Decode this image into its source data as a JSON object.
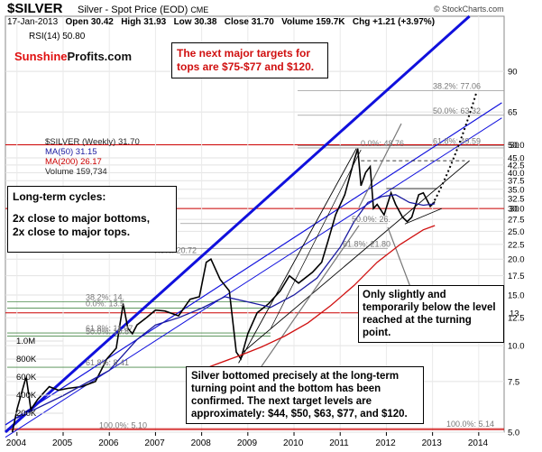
{
  "header": {
    "symbol": "$SILVER",
    "name": "Silver - Spot Price (EOD)",
    "exchange": "CME",
    "date": "17-Jan-2013",
    "open": "Open 30.42",
    "high": "High 31.93",
    "low": "Low 30.38",
    "close": "Close 31.70",
    "volume": "Volume 159.7K",
    "chg": "Chg +1.21 (+3.97%)",
    "copyright": "© StockCharts.com"
  },
  "rsi_label": "RSI(14) 50.80",
  "legend": {
    "series": "$SILVER (Weekly) 31.70",
    "ma50": "MA(50) 31.15",
    "ma200": "MA(200) 26.17",
    "volume": "Volume 159,734"
  },
  "logo": {
    "part1": "Sunshine",
    "part2": "Profits.com"
  },
  "annotations": {
    "targets": "The next major targets for tops are $75-$77 and $120.",
    "cycles_title": "Long-term cycles:",
    "cycles_line1": "2x close to major bottoms,",
    "cycles_line2": "2x close to major tops.",
    "slightly": "Only slightly and temporarily below the level reached at the turning point.",
    "bottomed": "Silver bottomed precisely at the long-term turning point  and the bottom has been confirmed. The next target levels are approximately: $44, $50, $63, $77, and $120."
  },
  "fib_labels": [
    {
      "text": "38.2%: 77.06",
      "price": 77.06
    },
    {
      "text": "50.0%: 63.32",
      "price": 63.32
    },
    {
      "text": "61.8%: 49.59",
      "price": 49.59
    },
    {
      "text": "0.0%: 48.76",
      "price": 48.76
    },
    {
      "text": "50.0%: 26.",
      "price": 26.6
    },
    {
      "text": "61.8%: 21.80",
      "price": 21.8
    },
    {
      "text": "0.0%: 20.72",
      "price": 20.72
    },
    {
      "text": "0.0%: 13.5",
      "price": 13.5
    },
    {
      "text": "38.2%: 14.",
      "price": 14.2
    },
    {
      "text": "61.8%: 11.07",
      "price": 11.07
    },
    {
      "text": "50.0%: 10.8",
      "price": 10.8
    },
    {
      "text": "61.8%: 8.41",
      "price": 8.41
    },
    {
      "text": "100.0%: 5.10",
      "price": 5.1
    },
    {
      "text": "100.0%: 5.14",
      "price": 5.14
    }
  ],
  "volume_labels": [
    "1.0M",
    "800K",
    "600K",
    "400K",
    "200K"
  ],
  "colors": {
    "price": "#000000",
    "ma50": "#1a1aa0",
    "ma200": "#d01010",
    "blue_trend": "#0000dd",
    "fib_red": "#cc0000",
    "fib_green": "#008000",
    "logo_red": "#e01010"
  },
  "chart_data": {
    "type": "line",
    "title": "$SILVER Silver - Spot Price (EOD) CME",
    "y_scale": "log",
    "ylim": [
      5,
      140
    ],
    "xlim": [
      2003.75,
      2014.55
    ],
    "x_ticks": [
      2004,
      2005,
      2006,
      2007,
      2008,
      2009,
      2010,
      2011,
      2012,
      2013,
      2014
    ],
    "y_ticks": [
      5.0,
      7.5,
      10.0,
      12.5,
      15.0,
      17.5,
      20.0,
      22.5,
      25.0,
      27.5,
      30.0,
      32.5,
      35.0,
      37.5,
      40.0,
      42.5,
      45.0,
      50.0,
      65,
      90
    ],
    "y_ticks_red": [
      13,
      30,
      50
    ],
    "series": [
      {
        "name": "$SILVER (Weekly)",
        "x": [
          2003.9,
          2004.0,
          2004.2,
          2004.3,
          2004.45,
          2004.7,
          2004.9,
          2005.1,
          2005.4,
          2005.7,
          2005.95,
          2006.15,
          2006.3,
          2006.4,
          2006.5,
          2006.6,
          2006.8,
          2007.0,
          2007.2,
          2007.5,
          2007.75,
          2007.95,
          2008.1,
          2008.2,
          2008.4,
          2008.6,
          2008.75,
          2008.85,
          2009.0,
          2009.2,
          2009.45,
          2009.7,
          2009.9,
          2010.1,
          2010.4,
          2010.6,
          2010.75,
          2010.9,
          2011.1,
          2011.3,
          2011.38,
          2011.45,
          2011.55,
          2011.65,
          2011.72,
          2011.8,
          2011.95,
          2012.1,
          2012.2,
          2012.35,
          2012.45,
          2012.55,
          2012.7,
          2012.8,
          2012.95,
          2013.05
        ],
        "values": [
          5.0,
          6.0,
          7.8,
          6.0,
          6.5,
          7.2,
          7.0,
          7.1,
          7.2,
          7.5,
          9.0,
          9.8,
          14.0,
          11.5,
          11.0,
          11.8,
          12.5,
          13.3,
          13.2,
          12.7,
          14.5,
          14.8,
          19.5,
          20.0,
          17.0,
          15.5,
          9.5,
          9.0,
          11.0,
          13.0,
          14.0,
          15.5,
          17.5,
          16.5,
          18.0,
          19.5,
          23.5,
          28.5,
          33.5,
          44.0,
          48.5,
          36.0,
          40.0,
          42.0,
          30.0,
          31.0,
          28.5,
          34.0,
          31.0,
          28.0,
          27.0,
          28.0,
          33.5,
          34.0,
          30.5,
          31.7
        ]
      },
      {
        "name": "MA(50)",
        "x": [
          2004.0,
          2005.0,
          2006.0,
          2006.6,
          2007.0,
          2007.5,
          2008.0,
          2008.5,
          2009.0,
          2009.5,
          2010.0,
          2010.5,
          2011.0,
          2011.3,
          2011.6,
          2011.9,
          2012.2,
          2012.5,
          2012.8,
          2013.05
        ],
        "values": [
          5.6,
          6.7,
          8.2,
          10.5,
          11.8,
          12.5,
          13.5,
          14.8,
          14.2,
          13.6,
          15.0,
          17.2,
          22.0,
          27.0,
          31.5,
          33.0,
          33.5,
          31.5,
          30.8,
          31.15
        ]
      },
      {
        "name": "MA(200)",
        "x": [
          2007.8,
          2008.3,
          2008.8,
          2009.3,
          2009.8,
          2010.3,
          2010.8,
          2011.3,
          2011.8,
          2012.3,
          2012.8,
          2013.05
        ],
        "values": [
          8.0,
          8.6,
          9.2,
          9.9,
          10.8,
          12.0,
          13.8,
          16.2,
          19.5,
          22.5,
          25.3,
          26.17
        ]
      }
    ]
  }
}
